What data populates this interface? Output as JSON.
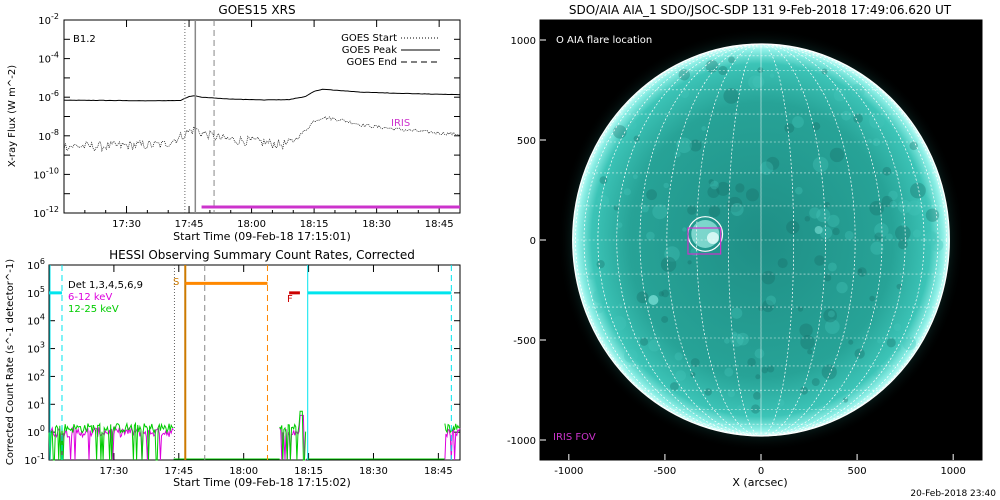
{
  "chart_data": [
    {
      "type": "line",
      "title": "GOES15 XRS",
      "xlabel": "Start Time (09-Feb-18 17:15:01)",
      "ylabel": "X-ray Flux (W m^-2)",
      "yscale": "log",
      "ylim": [
        1e-12,
        0.01
      ],
      "xlim_min": [
        0,
        95
      ],
      "x_ticks": [
        "17:30",
        "17:45",
        "18:00",
        "18:15",
        "18:30",
        "18:45"
      ],
      "x_tick_min": [
        15,
        30,
        45,
        60,
        75,
        90
      ],
      "y_ticks": [
        "10^-12",
        "10^-10",
        "10^-8",
        "10^-6",
        "10^-4",
        "10^-2"
      ],
      "class_label": "B1.2",
      "legend": [
        "GOES Start",
        "GOES Peak",
        "GOES End"
      ],
      "legend_placement": "top-right",
      "events_min": {
        "start": 29.0,
        "peak": 31.5,
        "end": 36.0
      },
      "iris_label": "IRIS",
      "iris_interval_min": [
        33.0,
        95.0
      ],
      "series": [
        {
          "name": "long",
          "x": [
            0,
            10,
            20,
            28,
            30,
            31.5,
            33,
            40,
            48,
            54,
            58,
            60,
            62,
            65,
            72,
            80,
            88,
            95
          ],
          "y": [
            7e-07,
            6.8e-07,
            6.5e-07,
            6.8e-07,
            1.1e-06,
            1.2e-06,
            1e-06,
            8e-07,
            7.2e-07,
            7.5e-07,
            1.1e-06,
            2e-06,
            2.6e-06,
            2.3e-06,
            1.8e-06,
            1.6e-06,
            1.45e-06,
            1.35e-06
          ]
        },
        {
          "name": "short",
          "x": [
            0,
            8,
            16,
            24,
            28,
            30,
            31.5,
            33,
            38,
            46,
            52,
            54,
            56,
            58,
            60,
            62,
            66,
            72,
            80,
            88,
            95
          ],
          "y": [
            3e-09,
            2.8e-09,
            3.2e-09,
            3.5e-09,
            9e-09,
            1.7e-08,
            2.2e-08,
            1.4e-08,
            7e-09,
            5e-09,
            3.5e-09,
            4e-09,
            8e-09,
            2e-08,
            6e-08,
            9e-08,
            7e-08,
            3.5e-08,
            2.2e-08,
            1.5e-08,
            1.2e-08
          ]
        }
      ]
    },
    {
      "type": "line",
      "title": "HESSI Observing Summary Count Rates, Corrected",
      "xlabel": "Start Time (09-Feb-18 17:15:02)",
      "ylabel": "Corrected Count Rate (s^-1 detector^-1)",
      "yscale": "log",
      "ylim": [
        0.1,
        1000000.0
      ],
      "xlim_min": [
        0,
        95
      ],
      "x_ticks": [
        "17:30",
        "17:45",
        "18:00",
        "18:15",
        "18:30",
        "18:45"
      ],
      "x_tick_min": [
        15,
        30,
        45,
        60,
        75,
        90
      ],
      "y_ticks": [
        "10^-1",
        "10^0",
        "10^1",
        "10^2",
        "10^3",
        "10^4",
        "10^5",
        "10^6"
      ],
      "legend": [
        "Det 1,3,4,5,6,9",
        "6-12 keV",
        "12-25 keV"
      ],
      "legend_placement": "top-left",
      "markers": {
        "S": "S",
        "F": "F"
      },
      "events_min": {
        "start": 29.0,
        "peak": 31.5,
        "end": 36.0
      },
      "saa_interval_min": [
        31.5,
        50.5
      ],
      "saa_level": 220000.0,
      "flare_flag_interval_min": [
        55.5,
        58.0
      ],
      "flare_flag_level": 100000.0,
      "night_intervals_min": [
        [
          -0.5,
          3.0
        ],
        [
          59.8,
          93.0
        ]
      ],
      "night_level": 100000.0,
      "series": [
        {
          "name": "6-12 keV",
          "intervals_min": [
            [
              0,
              28.8
            ],
            [
              53.3,
              59.5
            ],
            [
              91.5,
              95
            ]
          ],
          "level": 1.0
        },
        {
          "name": "12-25 keV",
          "intervals_min": [
            [
              0,
              28.8
            ],
            [
              53.3,
              59.5
            ],
            [
              91.5,
              95
            ]
          ],
          "level": 1.4
        }
      ]
    },
    {
      "type": "heatmap",
      "title": "SDO/AIA AIA_1 SDO/JSOC-SDP 131  9-Feb-2018 17:49:06.620 UT",
      "xlabel": "X (arcsec)",
      "ylabel": "",
      "xlim": [
        -1150,
        1150
      ],
      "ylim": [
        -1100,
        1100
      ],
      "x_ticks": [
        -1000,
        -500,
        0,
        500,
        1000
      ],
      "y_ticks": [
        -1000,
        -500,
        0,
        500,
        1000
      ],
      "solar_radius_arcsec": 980,
      "flare_location_label": "O AIA flare location",
      "flare_location_arcsec": [
        -290,
        30
      ],
      "flare_circle_radius_arcsec": 90,
      "iris_fov_label": "IRIS FOV",
      "iris_fov_arcsec": {
        "x": [
          -380,
          -210
        ],
        "y": [
          -70,
          60
        ]
      },
      "colors": {
        "disk": "#2fb3a6",
        "limb": "#aef5ef",
        "background": "#000000",
        "grid": "#ffffff",
        "iris": "#cc33cc"
      }
    }
  ],
  "footer": {
    "timestamp": "20-Feb-2018 23:40"
  }
}
